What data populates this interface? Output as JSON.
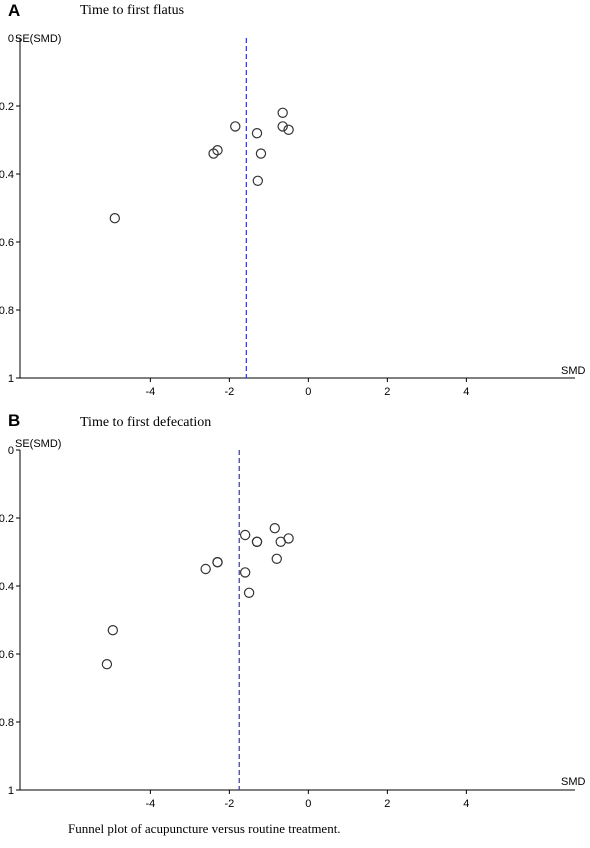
{
  "caption": "Funnel plot of acupuncture versus routine treatment.",
  "chart_data": [
    {
      "type": "scatter",
      "panel": "A",
      "title": "Time to first flatus",
      "xlabel": "SMD",
      "ylabel": "SE(SMD)",
      "xticks": [
        "-4",
        "-2",
        "0",
        "2",
        "4"
      ],
      "yticks": [
        "0",
        "0.2",
        "0.4",
        "0.6",
        "0.8",
        "1"
      ],
      "ylim": [
        0,
        1
      ],
      "y_inverted": true,
      "pooled_smd": -1.57,
      "points": [
        {
          "x": -4.9,
          "y": 0.53
        },
        {
          "x": -2.4,
          "y": 0.34
        },
        {
          "x": -2.3,
          "y": 0.33
        },
        {
          "x": -1.85,
          "y": 0.26
        },
        {
          "x": -1.3,
          "y": 0.28
        },
        {
          "x": -1.28,
          "y": 0.42
        },
        {
          "x": -1.2,
          "y": 0.34
        },
        {
          "x": -0.65,
          "y": 0.22
        },
        {
          "x": -0.65,
          "y": 0.26
        },
        {
          "x": -0.5,
          "y": 0.27
        }
      ]
    },
    {
      "type": "scatter",
      "panel": "B",
      "title": "Time to first defecation",
      "xlabel": "SMD",
      "ylabel": "SE(SMD)",
      "xticks": [
        "-4",
        "-2",
        "0",
        "2",
        "4"
      ],
      "yticks": [
        "0",
        "0.2",
        "0.4",
        "0.6",
        "0.8",
        "1"
      ],
      "ylim": [
        0,
        1
      ],
      "y_inverted": true,
      "pooled_smd": -1.75,
      "points": [
        {
          "x": -5.1,
          "y": 0.63
        },
        {
          "x": -4.95,
          "y": 0.53
        },
        {
          "x": -2.6,
          "y": 0.35
        },
        {
          "x": -2.3,
          "y": 0.33
        },
        {
          "x": -2.3,
          "y": 0.33
        },
        {
          "x": -1.6,
          "y": 0.25
        },
        {
          "x": -1.6,
          "y": 0.36
        },
        {
          "x": -1.5,
          "y": 0.42
        },
        {
          "x": -1.3,
          "y": 0.27
        },
        {
          "x": -1.3,
          "y": 0.27
        },
        {
          "x": -0.85,
          "y": 0.23
        },
        {
          "x": -0.8,
          "y": 0.32
        },
        {
          "x": -0.7,
          "y": 0.27
        },
        {
          "x": -0.5,
          "y": 0.26
        }
      ]
    }
  ]
}
